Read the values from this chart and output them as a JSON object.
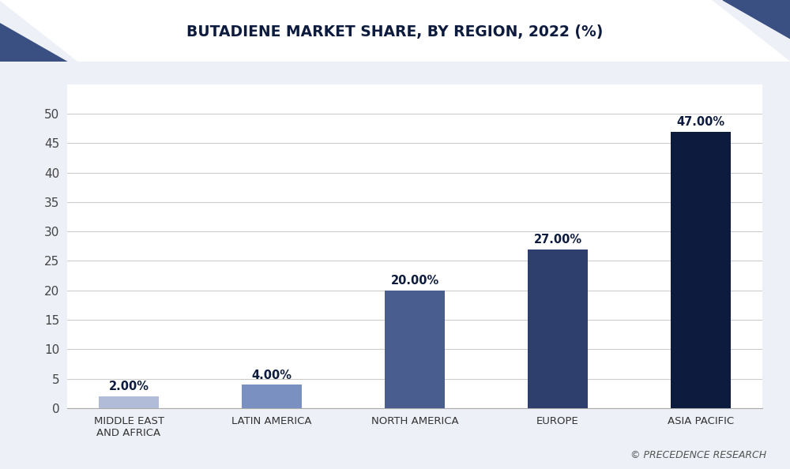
{
  "title": "BUTADIENE MARKET SHARE, BY REGION, 2022 (%)",
  "categories": [
    "MIDDLE EAST\nAND AFRICA",
    "LATIN AMERICA",
    "NORTH AMERICA",
    "EUROPE",
    "ASIA PACIFIC"
  ],
  "values": [
    2.0,
    4.0,
    20.0,
    27.0,
    47.0
  ],
  "labels": [
    "2.00%",
    "4.00%",
    "20.00%",
    "27.00%",
    "47.00%"
  ],
  "bar_colors": [
    "#b0bcd8",
    "#7a90c0",
    "#4a5d8f",
    "#2e3f6e",
    "#0d1b3e"
  ],
  "background_color": "#f0f2f8",
  "plot_bg_color": "#ffffff",
  "title_color": "#0d1b3e",
  "ylim": [
    0,
    55
  ],
  "yticks": [
    0,
    5,
    10,
    15,
    20,
    25,
    30,
    35,
    40,
    45,
    50
  ],
  "ylabel_fontsize": 11,
  "xlabel_fontsize": 9.5,
  "title_fontsize": 13.5,
  "label_fontsize": 10.5,
  "watermark": "© PRECEDENCE RESEARCH",
  "header_dark_color": "#0d1b3e",
  "header_mid_color": "#3a4f82",
  "plot_area_bg": "#eef0f7"
}
